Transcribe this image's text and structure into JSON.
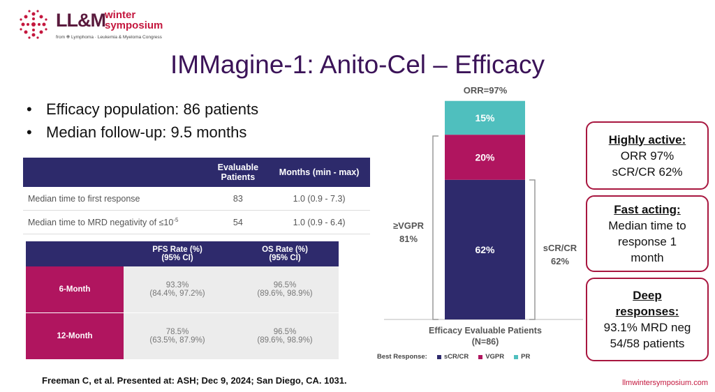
{
  "header": {
    "logo_main": "LL&M",
    "logo_accent_1": "winter",
    "logo_accent_2": "symposium",
    "logo_sub": "from ✙ Lymphoma · Leukemia & Myeloma Congress"
  },
  "title": "IMMagine-1: Anito-Cel – Efficacy",
  "bullets": [
    "Efficacy population: 86 patients",
    "Median follow-up: 9.5 months"
  ],
  "table1": {
    "headers": [
      "Evaluable Patients",
      "Months (min - max)"
    ],
    "rows": [
      {
        "label": "Median time to first response",
        "patients": "83",
        "months": "1.0 (0.9 - 7.3)"
      },
      {
        "label": "Median time to MRD negativity of ≤10",
        "sup": "-5",
        "patients": "54",
        "months": "1.0 (0.9 - 6.4)"
      }
    ]
  },
  "table2": {
    "headers": [
      [
        "PFS Rate (%)",
        "(95% CI)"
      ],
      [
        "OS Rate (%)",
        "(95% CI)"
      ]
    ],
    "rows": [
      {
        "label": "6-Month",
        "cells": [
          [
            "93.3%",
            "(84.4%, 97.2%)"
          ],
          [
            "96.5%",
            "(89.6%, 98.9%)"
          ]
        ]
      },
      {
        "label": "12-Month",
        "cells": [
          [
            "78.5%",
            "(63.5%, 87.9%)"
          ],
          [
            "96.5%",
            "(89.6%, 98.9%)"
          ]
        ]
      }
    ]
  },
  "chart_data": {
    "type": "stacked-bar",
    "categories": [
      "Efficacy Evaluable Patients (N=86)"
    ],
    "series": [
      {
        "name": "sCR/CR",
        "color": "#2e2a6c",
        "values": [
          62
        ],
        "value_labels": [
          "62%"
        ]
      },
      {
        "name": "VGPR",
        "color": "#b0155f",
        "values": [
          20
        ],
        "value_labels": [
          "20%"
        ]
      },
      {
        "name": "PR",
        "color": "#4fbfbe",
        "values": [
          15
        ],
        "value_labels": [
          "15%"
        ]
      }
    ],
    "legend_title": "Best Response:",
    "annotations": {
      "top": "ORR=97%",
      "left": [
        "≥VGPR",
        "81%"
      ],
      "right": [
        "sCR/CR",
        "62%"
      ]
    }
  },
  "callouts": [
    {
      "title": "Highly active:",
      "text": [
        "ORR 97%",
        "sCR/CR 62%"
      ]
    },
    {
      "title": "Fast acting:",
      "text": [
        "Median time to response 1 month"
      ]
    },
    {
      "title": "Deep responses:",
      "text": [
        "93.1% MRD neg",
        "54/58 patients"
      ]
    }
  ],
  "footer": {
    "citation": "Freeman C, et al. Presented at: ASH; Dec 9, 2024; San Diego, CA. 1031.",
    "url": "llmwintersymposium.com"
  }
}
